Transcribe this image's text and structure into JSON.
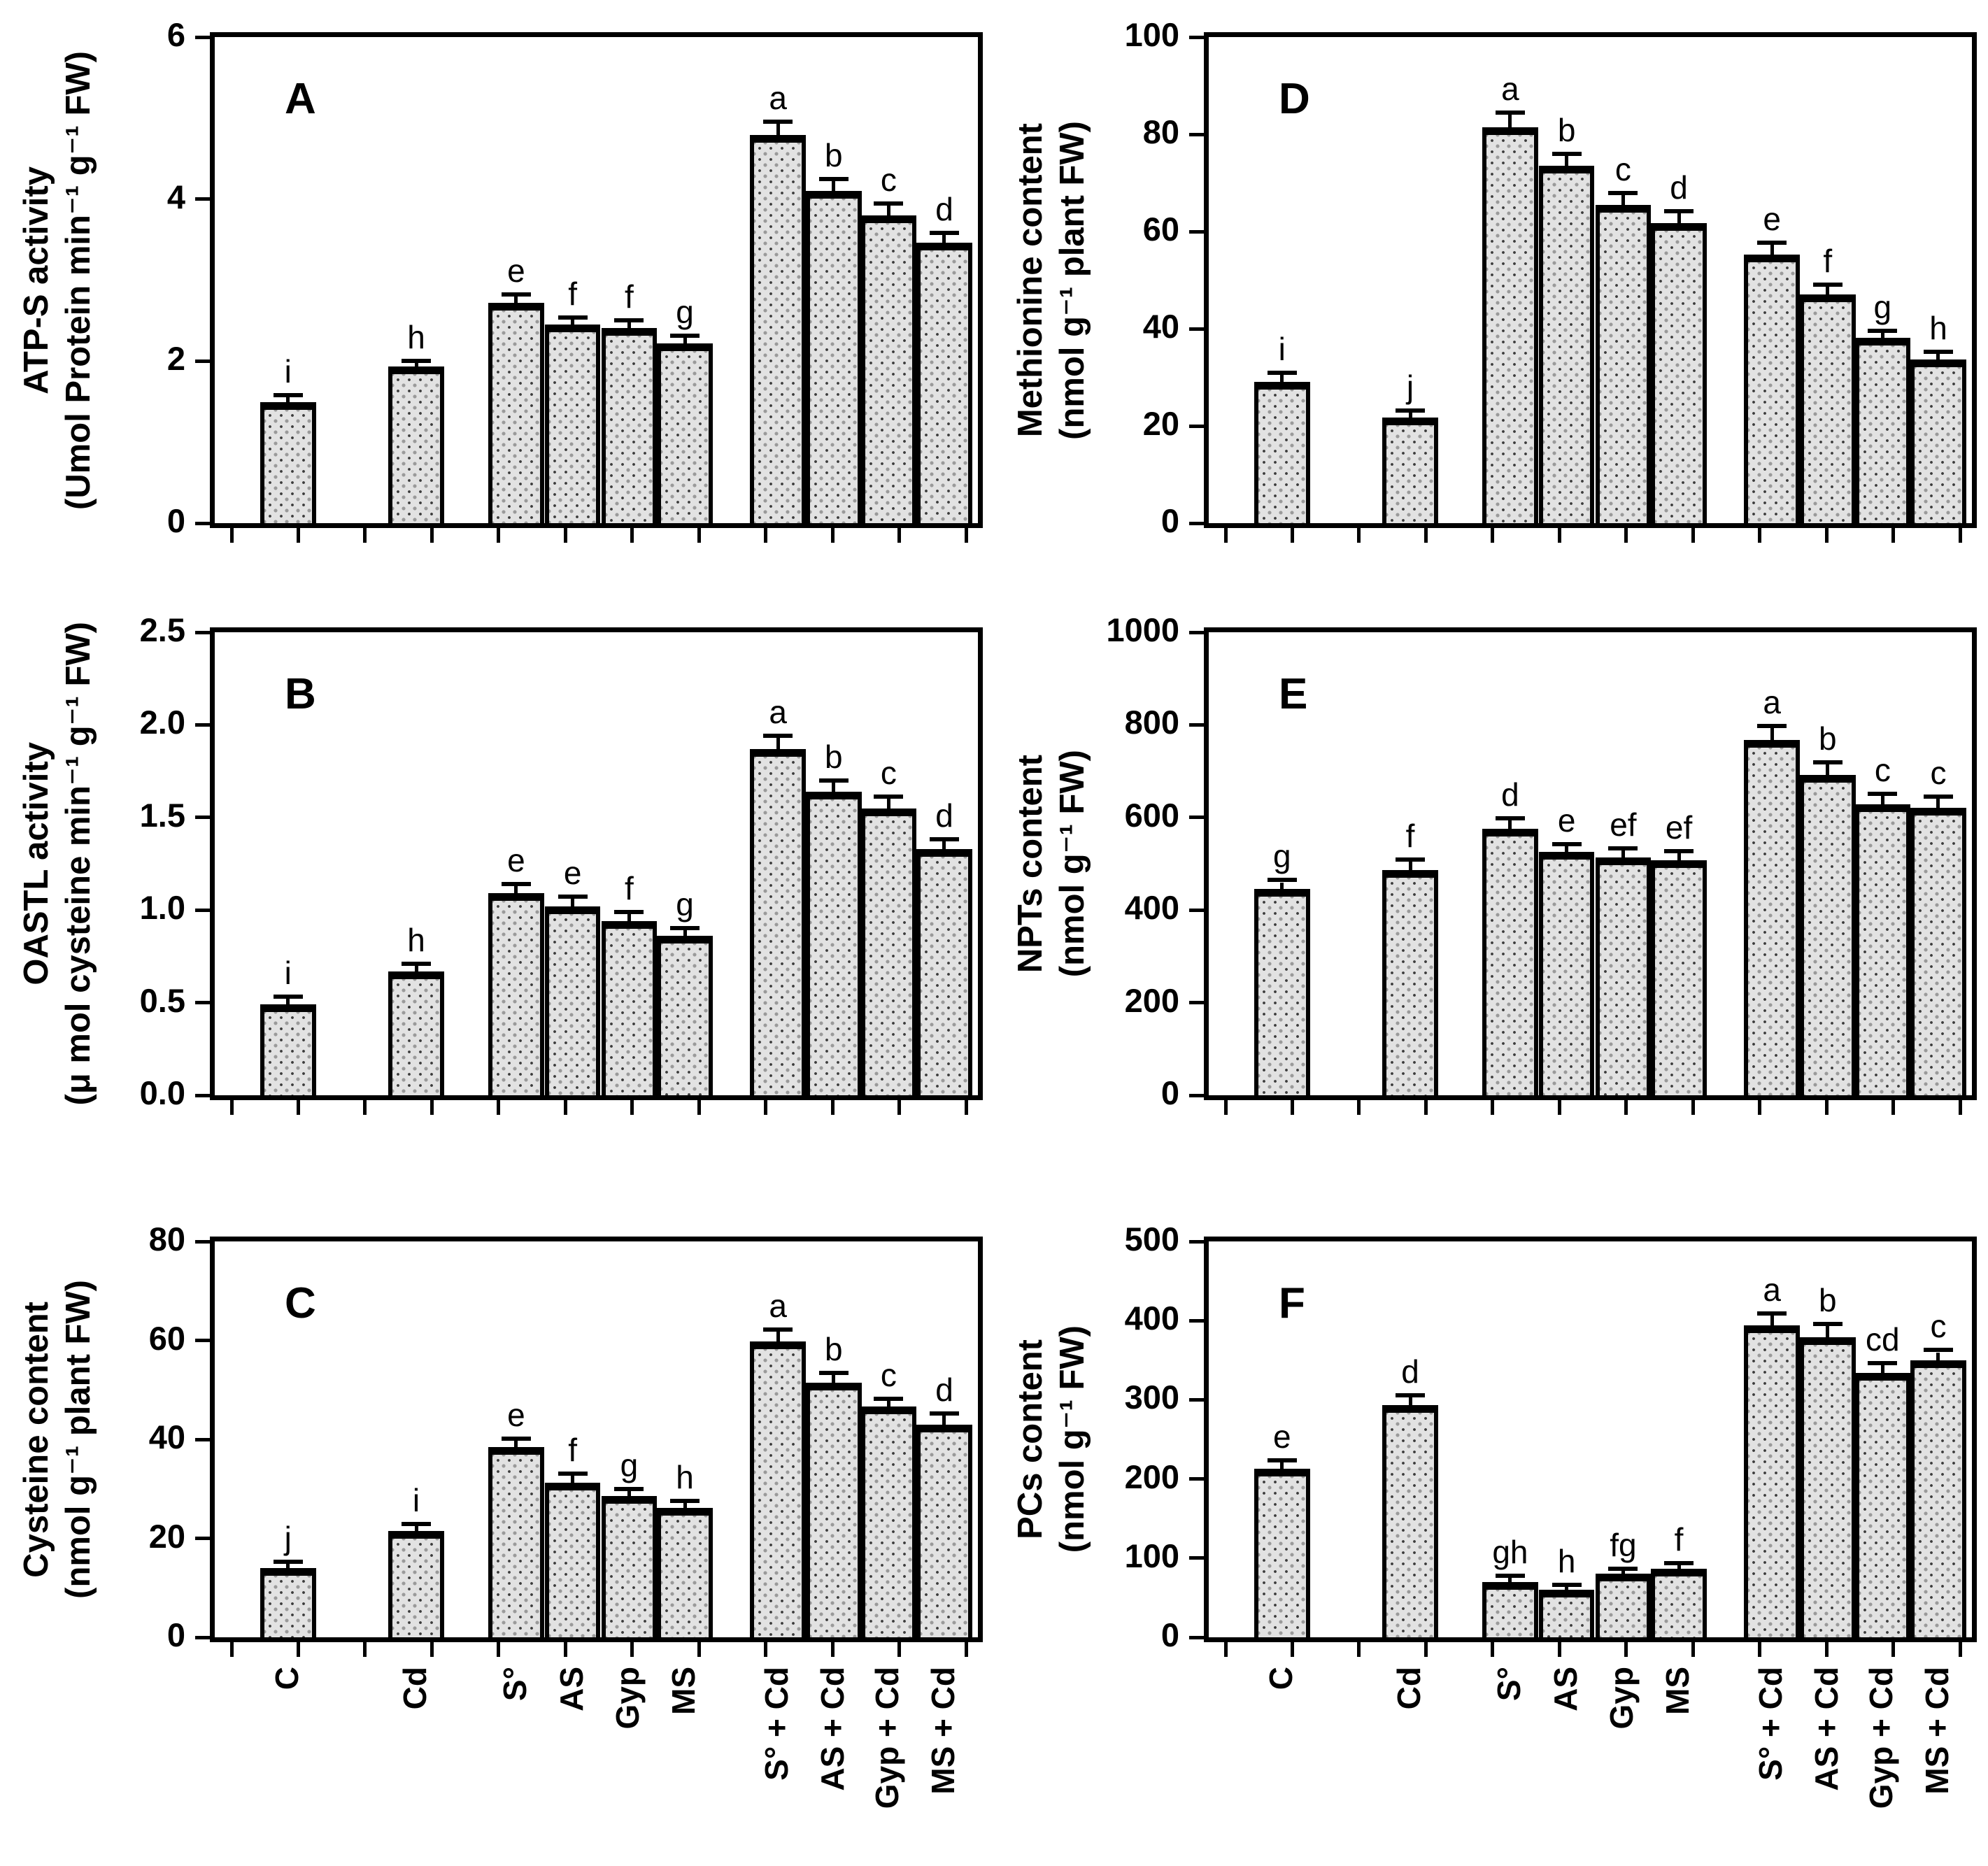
{
  "figure": {
    "background": "#ffffff",
    "ink_color": "#000000",
    "bar_fill": "#e2e2e2",
    "bar_dot_dark": "#3c3c3c",
    "bar_dot_light": "#9a9a9a"
  },
  "categories": [
    "C",
    "Cd",
    "S°",
    "AS",
    "Gyp",
    "MS",
    "S° + Cd",
    "AS + Cd",
    "Gyp + Cd",
    "MS + Cd"
  ],
  "chart_data": [
    {
      "panel": "A",
      "type": "bar",
      "title": "ATP-S activity",
      "ylabel_line1": "ATP-S activity",
      "ylabel_line2": "(Umol Protein min⁻¹ g⁻¹ FW)",
      "ylim": [
        0,
        6
      ],
      "yticks": [
        0,
        2,
        4,
        6
      ],
      "ytick_labels": [
        "0",
        "2",
        "4",
        "6"
      ],
      "values": [
        1.49,
        1.93,
        2.72,
        2.45,
        2.41,
        2.22,
        4.79,
        4.1,
        3.8,
        3.46
      ],
      "errors": [
        0.06,
        0.05,
        0.08,
        0.06,
        0.07,
        0.07,
        0.14,
        0.12,
        0.12,
        0.1
      ],
      "letters": [
        "i",
        "h",
        "e",
        "f",
        "f",
        "g",
        "a",
        "b",
        "c",
        "d"
      ],
      "show_x_labels": false,
      "grid": false,
      "legend": false
    },
    {
      "panel": "B",
      "type": "bar",
      "title": "OASTL activity",
      "ylabel_line1": "OASTL activity",
      "ylabel_line2": "(μ mol cysteine min⁻¹ g⁻¹ FW)",
      "ylim": [
        0,
        2.5
      ],
      "yticks": [
        0,
        0.5,
        1.0,
        1.5,
        2.0,
        2.5
      ],
      "ytick_labels": [
        "0.0",
        "0.5",
        "1.0",
        "1.5",
        "2.0",
        "2.5"
      ],
      "values": [
        0.49,
        0.67,
        1.09,
        1.02,
        0.94,
        0.86,
        1.87,
        1.64,
        1.55,
        1.33
      ],
      "errors": [
        0.03,
        0.03,
        0.04,
        0.04,
        0.04,
        0.03,
        0.06,
        0.05,
        0.05,
        0.04
      ],
      "letters": [
        "i",
        "h",
        "e",
        "e",
        "f",
        "g",
        "a",
        "b",
        "c",
        "d"
      ],
      "show_x_labels": false,
      "grid": false,
      "legend": false
    },
    {
      "panel": "C",
      "type": "bar",
      "title": "Cysteine content",
      "ylabel_line1": "Cysteine content",
      "ylabel_line2": "(nmol g⁻¹ plant FW)",
      "ylim": [
        0,
        80
      ],
      "yticks": [
        0,
        20,
        40,
        60,
        80
      ],
      "ytick_labels": [
        "0",
        "20",
        "40",
        "60",
        "80"
      ],
      "values": [
        14.0,
        21.5,
        38.5,
        31.2,
        28.6,
        26.2,
        59.8,
        51.5,
        46.6,
        43.0
      ],
      "errors": [
        0.8,
        1.0,
        1.2,
        1.5,
        1.0,
        1.0,
        2.0,
        1.5,
        1.2,
        1.8
      ],
      "letters": [
        "j",
        "i",
        "e",
        "f",
        "g",
        "h",
        "a",
        "b",
        "c",
        "d"
      ],
      "show_x_labels": true,
      "grid": false,
      "legend": false
    },
    {
      "panel": "D",
      "type": "bar",
      "title": "Methionine content",
      "ylabel_line1": "Methionine content",
      "ylabel_line2": "(nmol g⁻¹ plant FW)",
      "ylim": [
        0,
        100
      ],
      "yticks": [
        0,
        20,
        40,
        60,
        80,
        100
      ],
      "ytick_labels": [
        "0",
        "20",
        "40",
        "60",
        "80",
        "100"
      ],
      "values": [
        29.0,
        21.7,
        81.5,
        73.5,
        65.5,
        61.7,
        55.2,
        47.1,
        38.1,
        33.6
      ],
      "errors": [
        1.5,
        1.0,
        2.5,
        2.0,
        2.0,
        2.0,
        2.0,
        1.5,
        1.0,
        1.2
      ],
      "letters": [
        "i",
        "j",
        "a",
        "b",
        "c",
        "d",
        "e",
        "f",
        "g",
        "h"
      ],
      "show_x_labels": false,
      "grid": false,
      "legend": false
    },
    {
      "panel": "E",
      "type": "bar",
      "title": "NPTs content",
      "ylabel_line1": "NPTs  content",
      "ylabel_line2": "(nmol g⁻¹ FW)",
      "ylim": [
        0,
        1000
      ],
      "yticks": [
        0,
        200,
        400,
        600,
        800,
        1000
      ],
      "ytick_labels": [
        "0",
        "200",
        "400",
        "600",
        "800",
        "1000"
      ],
      "values": [
        445,
        487,
        576,
        526,
        513,
        508,
        768,
        692,
        628,
        621
      ],
      "errors": [
        15,
        18,
        18,
        12,
        15,
        15,
        25,
        22,
        18,
        20
      ],
      "letters": [
        "g",
        "f",
        "d",
        "e",
        "ef",
        "ef",
        "a",
        "b",
        "c",
        "c"
      ],
      "show_x_labels": false,
      "grid": false,
      "legend": false
    },
    {
      "panel": "F",
      "type": "bar",
      "title": "PCs content",
      "ylabel_line1": "PCs content",
      "ylabel_line2": "(nmol g⁻¹ FW)",
      "ylim": [
        0,
        500
      ],
      "yticks": [
        0,
        100,
        200,
        300,
        400,
        500
      ],
      "ytick_labels": [
        "0",
        "100",
        "200",
        "300",
        "400",
        "500"
      ],
      "values": [
        213,
        293,
        70,
        60,
        80,
        87,
        394,
        379,
        334,
        350
      ],
      "errors": [
        8,
        10,
        5,
        4,
        4,
        4,
        12,
        14,
        10,
        10
      ],
      "letters": [
        "e",
        "d",
        "gh",
        "h",
        "fg",
        "f",
        "a",
        "b",
        "cd",
        "c"
      ],
      "show_x_labels": true,
      "grid": false,
      "legend": false
    }
  ]
}
